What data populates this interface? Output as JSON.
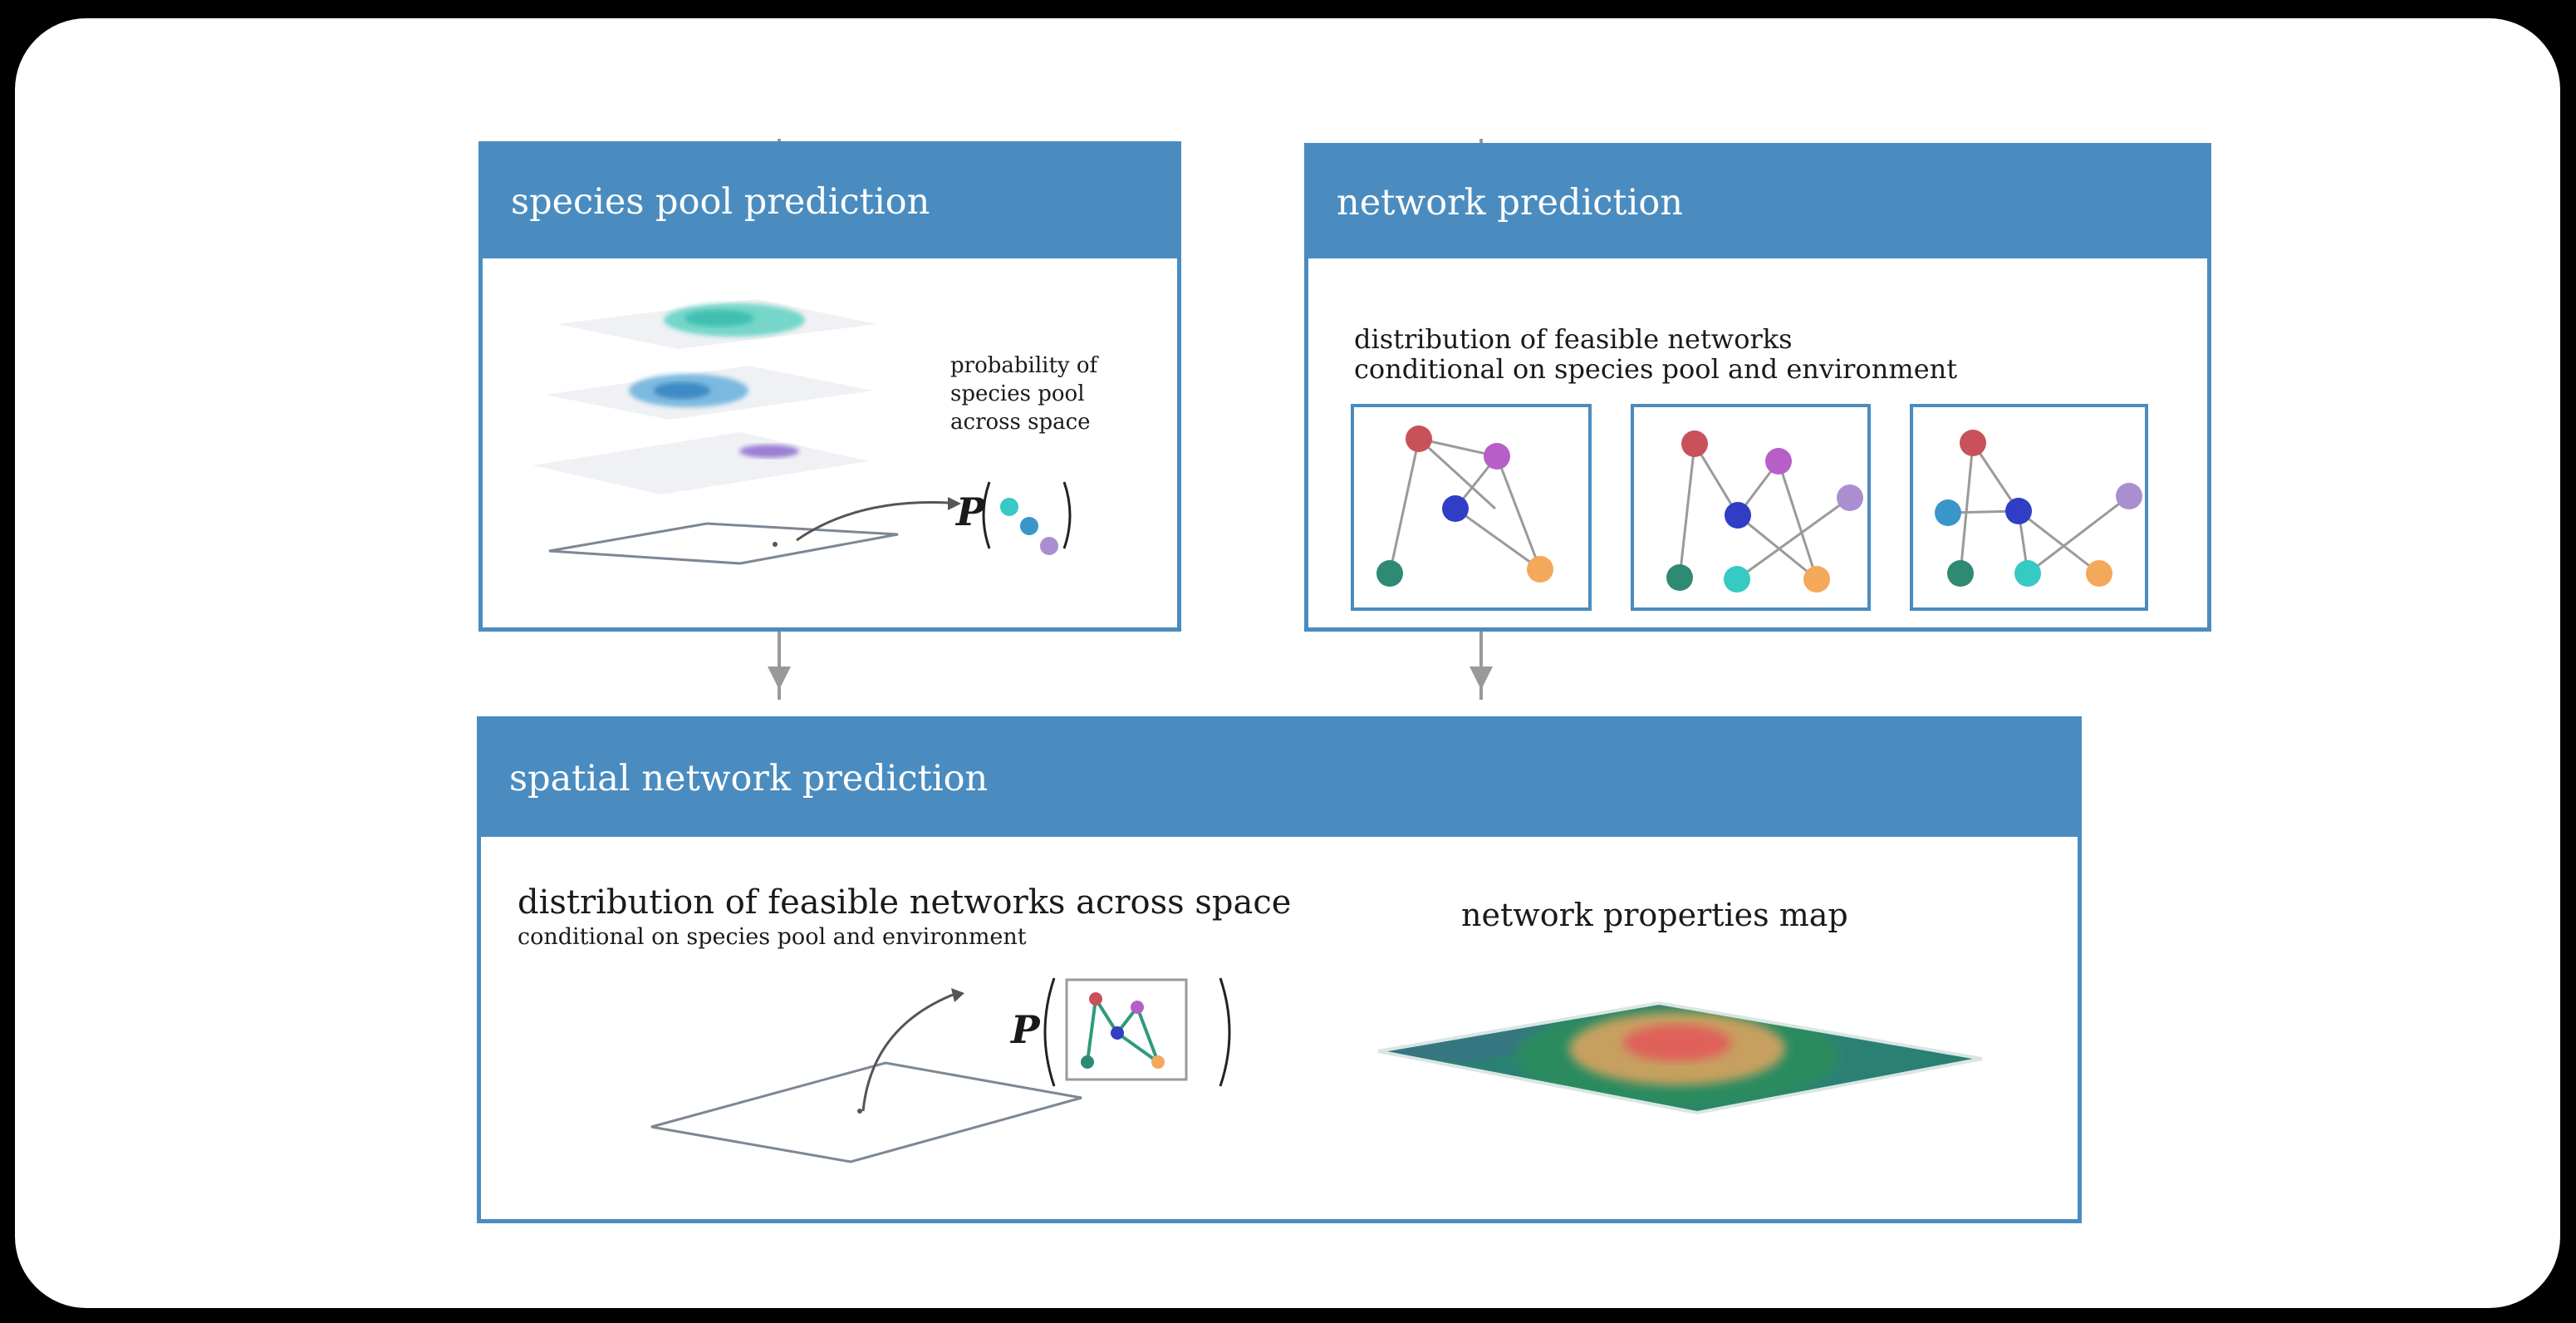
{
  "panels": {
    "species_pool": {
      "title": "species pool prediction",
      "note_line1": "probability of",
      "note_line2": "species pool",
      "note_line3": "across space",
      "p_symbol": "P"
    },
    "network": {
      "title": "network prediction",
      "desc_line1": "distribution of feasible networks",
      "desc_line2": "conditional on species pool and environment"
    },
    "spatial": {
      "title": "spatial network prediction",
      "desc_line1": "distribution of feasible networks across space",
      "desc_line2": "conditional on species pool and environment",
      "p_symbol": "P",
      "map_label": "network properties map"
    }
  },
  "colors": {
    "panel_blue": "#4a8cbf",
    "node_red": "#c9515a",
    "node_magenta": "#b65fc6",
    "node_blue": "#2f3ec4",
    "node_lavender": "#a98fcf",
    "node_green": "#2f8a74",
    "node_orange": "#f4a85a",
    "node_cyan": "#37c9c4",
    "node_lightblue": "#3a95c9"
  }
}
